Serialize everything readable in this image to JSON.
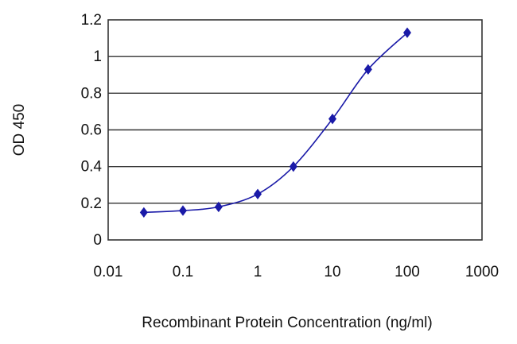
{
  "chart_data": {
    "type": "line",
    "title": "",
    "xlabel": "Recombinant Protein Concentration (ng/ml)",
    "ylabel": "OD 450",
    "x_scale": "log",
    "xlim": [
      0.01,
      1000
    ],
    "ylim": [
      0,
      1.2
    ],
    "x_ticks": [
      "0.01",
      "0.1",
      "1",
      "10",
      "100",
      "1000"
    ],
    "y_ticks": [
      "0",
      "0.2",
      "0.4",
      "0.6",
      "0.8",
      "1",
      "1.2"
    ],
    "grid": "horizontal",
    "legend": "none",
    "series": [
      {
        "color": "#1a1aa8",
        "marker": "diamond",
        "x": [
          0.03,
          0.1,
          0.3,
          1,
          3,
          10,
          30,
          100
        ],
        "y": [
          0.15,
          0.16,
          0.18,
          0.25,
          0.4,
          0.66,
          0.93,
          1.13
        ]
      }
    ]
  }
}
